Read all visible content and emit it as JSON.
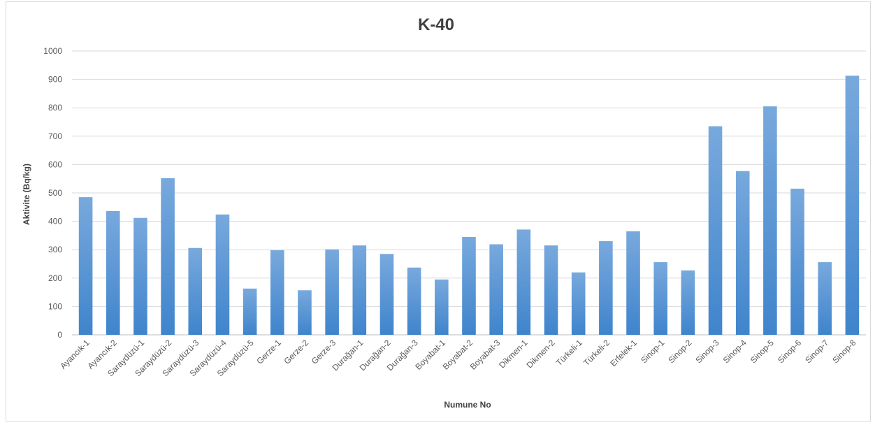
{
  "chart_data": {
    "type": "bar",
    "title": "K-40",
    "xlabel": "Numune No",
    "ylabel": "Aktivite (Bq/kg)",
    "ylim": [
      0,
      1000
    ],
    "yticks": [
      0,
      100,
      200,
      300,
      400,
      500,
      600,
      700,
      800,
      900,
      1000
    ],
    "grid": true,
    "bar_color_top": "#78a9dd",
    "bar_color_bottom": "#3f84cc",
    "categories": [
      "Ayancık-1",
      "Ayancık-2",
      "Saraydüzü-1",
      "Saraydüzü-2",
      "Saraydüzü-3",
      "Saraydüzü-4",
      "Saraydüzü-5",
      "Gerze-1",
      "Gerze-2",
      "Gerze-3",
      "Durağan-1",
      "Durağan-2",
      "Durağan-3",
      "Boyabat-1",
      "Boyabat-2",
      "Boyabat-3",
      "Dikmen-1",
      "Dikmen-2",
      "Türkeli-1",
      "Türkeli-2",
      "Erfelek-1",
      "Sinop-1",
      "Sinop-2",
      "Sinop-3",
      "Sinop-4",
      "Sinop-5",
      "Sinop-6",
      "Sinop-7",
      "Sinop-8"
    ],
    "values": [
      485,
      436,
      412,
      552,
      306,
      424,
      163,
      298,
      157,
      301,
      315,
      285,
      237,
      195,
      345,
      319,
      371,
      315,
      220,
      330,
      365,
      256,
      227,
      735,
      577,
      805,
      515,
      256,
      913
    ]
  }
}
